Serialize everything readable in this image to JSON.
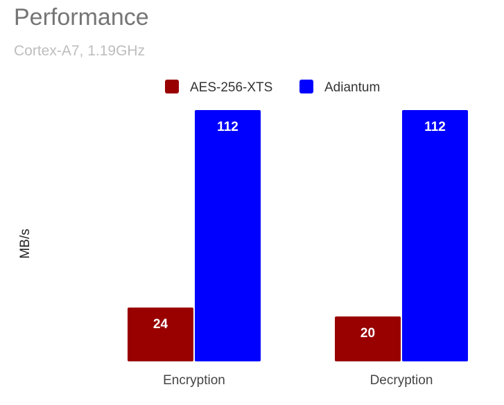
{
  "chart_data": {
    "type": "bar",
    "title": "Performance",
    "subtitle": "Cortex-A7, 1.19GHz",
    "ylabel": "MB/s",
    "xlabel": "",
    "categories": [
      "Encryption",
      "Decryption"
    ],
    "series": [
      {
        "name": "AES-256-XTS",
        "color": "#990000",
        "values": [
          24,
          20
        ]
      },
      {
        "name": "Adiantum",
        "color": "#0000ff",
        "values": [
          112,
          112
        ]
      }
    ],
    "ylim": [
      0,
      112
    ],
    "grid": false,
    "legend_position": "top",
    "data_labels": true
  }
}
